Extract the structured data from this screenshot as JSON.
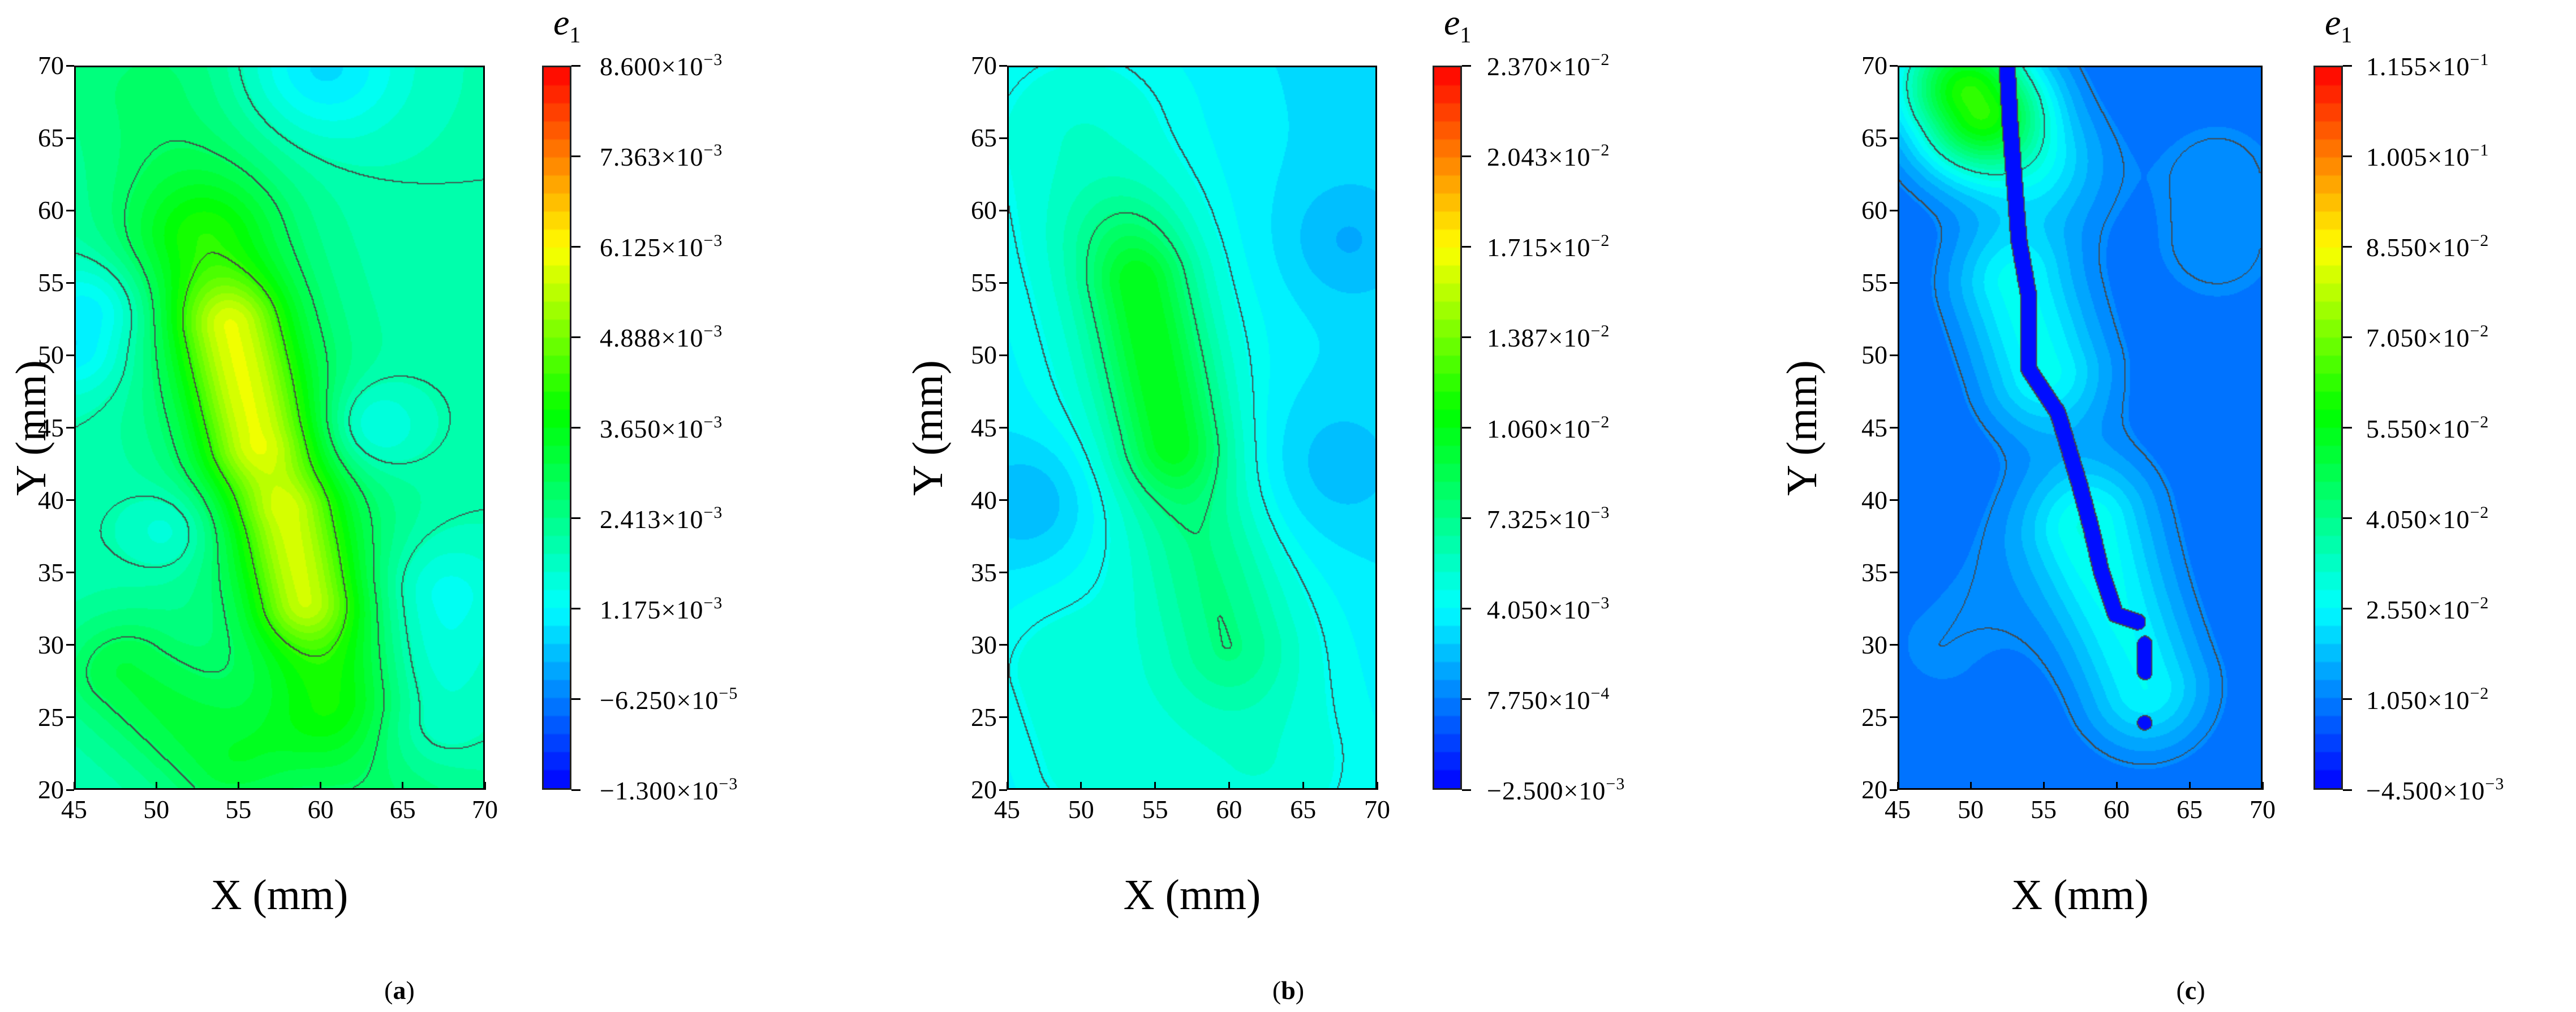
{
  "chart_data": [
    {
      "type": "heatmap",
      "panel_label": "a",
      "xlabel": "X (mm)",
      "ylabel": "Y (mm)",
      "xlim": [
        45,
        70
      ],
      "ylim": [
        20,
        70
      ],
      "xticks": [
        "45",
        "50",
        "55",
        "60",
        "65",
        "70"
      ],
      "yticks": [
        "20",
        "25",
        "30",
        "35",
        "40",
        "45",
        "50",
        "55",
        "60",
        "65",
        "70"
      ],
      "colorbar_title": "e",
      "colorbar_title_sub": "1",
      "colorbar_range": [
        -0.0013,
        0.0086
      ],
      "colormap": "jet",
      "colorbar_ticks": [
        {
          "mantissa": "8.600",
          "exponent": "−3"
        },
        {
          "mantissa": "7.363",
          "exponent": "−3"
        },
        {
          "mantissa": "6.125",
          "exponent": "−3"
        },
        {
          "mantissa": "4.888",
          "exponent": "−3"
        },
        {
          "mantissa": "3.650",
          "exponent": "−3"
        },
        {
          "mantissa": "2.413",
          "exponent": "−3"
        },
        {
          "mantissa": "1.175",
          "exponent": "−3"
        },
        {
          "mantissa": "−6.250",
          "exponent": "−5"
        },
        {
          "mantissa": "−1.300",
          "exponent": "−3"
        }
      ]
    },
    {
      "type": "heatmap",
      "panel_label": "b",
      "xlabel": "X (mm)",
      "ylabel": "Y (mm)",
      "xlim": [
        45,
        70
      ],
      "ylim": [
        20,
        70
      ],
      "xticks": [
        "45",
        "50",
        "55",
        "60",
        "65",
        "70"
      ],
      "yticks": [
        "20",
        "25",
        "30",
        "35",
        "40",
        "45",
        "50",
        "55",
        "60",
        "65",
        "70"
      ],
      "colorbar_title": "e",
      "colorbar_title_sub": "1",
      "colorbar_range": [
        -0.0025,
        0.0237
      ],
      "colormap": "jet",
      "colorbar_ticks": [
        {
          "mantissa": "2.370",
          "exponent": "−2"
        },
        {
          "mantissa": "2.043",
          "exponent": "−2"
        },
        {
          "mantissa": "1.715",
          "exponent": "−2"
        },
        {
          "mantissa": "1.387",
          "exponent": "−2"
        },
        {
          "mantissa": "1.060",
          "exponent": "−2"
        },
        {
          "mantissa": "7.325",
          "exponent": "−3"
        },
        {
          "mantissa": "4.050",
          "exponent": "−3"
        },
        {
          "mantissa": "7.750",
          "exponent": "−4"
        },
        {
          "mantissa": "−2.500",
          "exponent": "−3"
        }
      ]
    },
    {
      "type": "heatmap",
      "panel_label": "c",
      "xlabel": "X (mm)",
      "ylabel": "Y (mm)",
      "xlim": [
        45,
        70
      ],
      "ylim": [
        20,
        70
      ],
      "xticks": [
        "45",
        "50",
        "55",
        "60",
        "65",
        "70"
      ],
      "yticks": [
        "20",
        "25",
        "30",
        "35",
        "40",
        "45",
        "50",
        "55",
        "60",
        "65",
        "70"
      ],
      "colorbar_title": "e",
      "colorbar_title_sub": "1",
      "colorbar_range": [
        -0.0045,
        0.1155
      ],
      "colormap": "jet",
      "colorbar_ticks": [
        {
          "mantissa": "1.155",
          "exponent": "−1"
        },
        {
          "mantissa": "1.005",
          "exponent": "−1"
        },
        {
          "mantissa": "8.550",
          "exponent": "−2"
        },
        {
          "mantissa": "7.050",
          "exponent": "−2"
        },
        {
          "mantissa": "5.550",
          "exponent": "−2"
        },
        {
          "mantissa": "4.050",
          "exponent": "−2"
        },
        {
          "mantissa": "2.550",
          "exponent": "−2"
        },
        {
          "mantissa": "1.050",
          "exponent": "−2"
        },
        {
          "mantissa": "−4.500",
          "exponent": "−3"
        }
      ]
    }
  ]
}
